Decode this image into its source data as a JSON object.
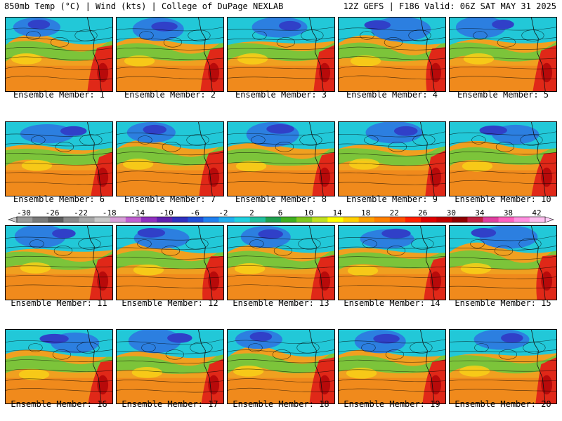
{
  "header": {
    "left": "850mb Temp (°C) | Wind (kts) | College of DuPage NEXLAB",
    "right": "12Z GEFS | F186 Valid: 06Z SAT MAY 31 2025"
  },
  "members": [
    "Ensemble Member: 1",
    "Ensemble Member: 2",
    "Ensemble Member: 3",
    "Ensemble Member: 4",
    "Ensemble Member: 5",
    "Ensemble Member: 6",
    "Ensemble Member: 7",
    "Ensemble Member: 8",
    "Ensemble Member: 9",
    "Ensemble Member: 10",
    "Ensemble Member: 11",
    "Ensemble Member: 12",
    "Ensemble Member: 13",
    "Ensemble Member: 14",
    "Ensemble Member: 15",
    "Ensemble Member: 16",
    "Ensemble Member: 17",
    "Ensemble Member: 18",
    "Ensemble Member: 19",
    "Ensemble Member: 20"
  ],
  "colorbar": {
    "labels": [
      "-30",
      "-26",
      "-22",
      "-18",
      "-14",
      "-10",
      "-6",
      "-2",
      "2",
      "6",
      "10",
      "14",
      "18",
      "22",
      "26",
      "30",
      "34",
      "38",
      "42"
    ],
    "colors": [
      "#9a9a9a",
      "#7a7a7a",
      "#5e5e5e",
      "#8a8a8a",
      "#a8a8a8",
      "#c8c8c8",
      "#d8a0d8",
      "#c060d0",
      "#9030c0",
      "#6020b0",
      "#3030c0",
      "#2050d8",
      "#2080f0",
      "#20b0f0",
      "#20d0e0",
      "#20c0a0",
      "#20a050",
      "#40b020",
      "#80c820",
      "#c0e020",
      "#ffff00",
      "#ffd000",
      "#ffa000",
      "#ff8000",
      "#ff5000",
      "#ff2000",
      "#e00000",
      "#c00000",
      "#900000",
      "#c02040",
      "#e040a0",
      "#ff60c0",
      "#ff90e0",
      "#ffc0f0"
    ]
  }
}
